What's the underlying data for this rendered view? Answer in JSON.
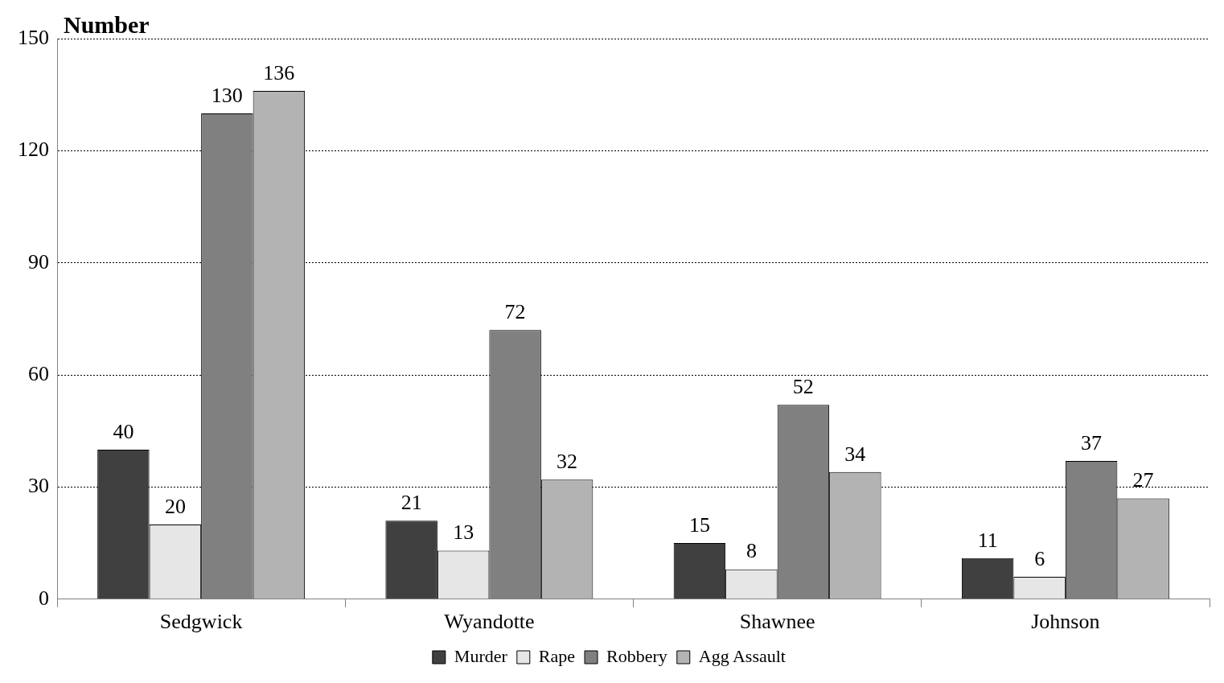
{
  "chart_data": {
    "type": "bar",
    "title": "Number",
    "categories": [
      "Sedgwick",
      "Wyandotte",
      "Shawnee",
      "Johnson"
    ],
    "series": [
      {
        "name": "Murder",
        "color": "#404040",
        "values": [
          40,
          21,
          15,
          11
        ]
      },
      {
        "name": "Rape",
        "color": "#e6e6e6",
        "values": [
          20,
          13,
          8,
          6
        ]
      },
      {
        "name": "Robbery",
        "color": "#808080",
        "values": [
          130,
          72,
          52,
          37
        ]
      },
      {
        "name": "Agg Assault",
        "color": "#b3b3b3",
        "values": [
          136,
          32,
          34,
          27
        ]
      }
    ],
    "ylim": [
      0,
      150
    ],
    "yticks": [
      0,
      30,
      60,
      90,
      120,
      150
    ],
    "grid": "y",
    "legend": "bottom",
    "data_labels": true
  }
}
